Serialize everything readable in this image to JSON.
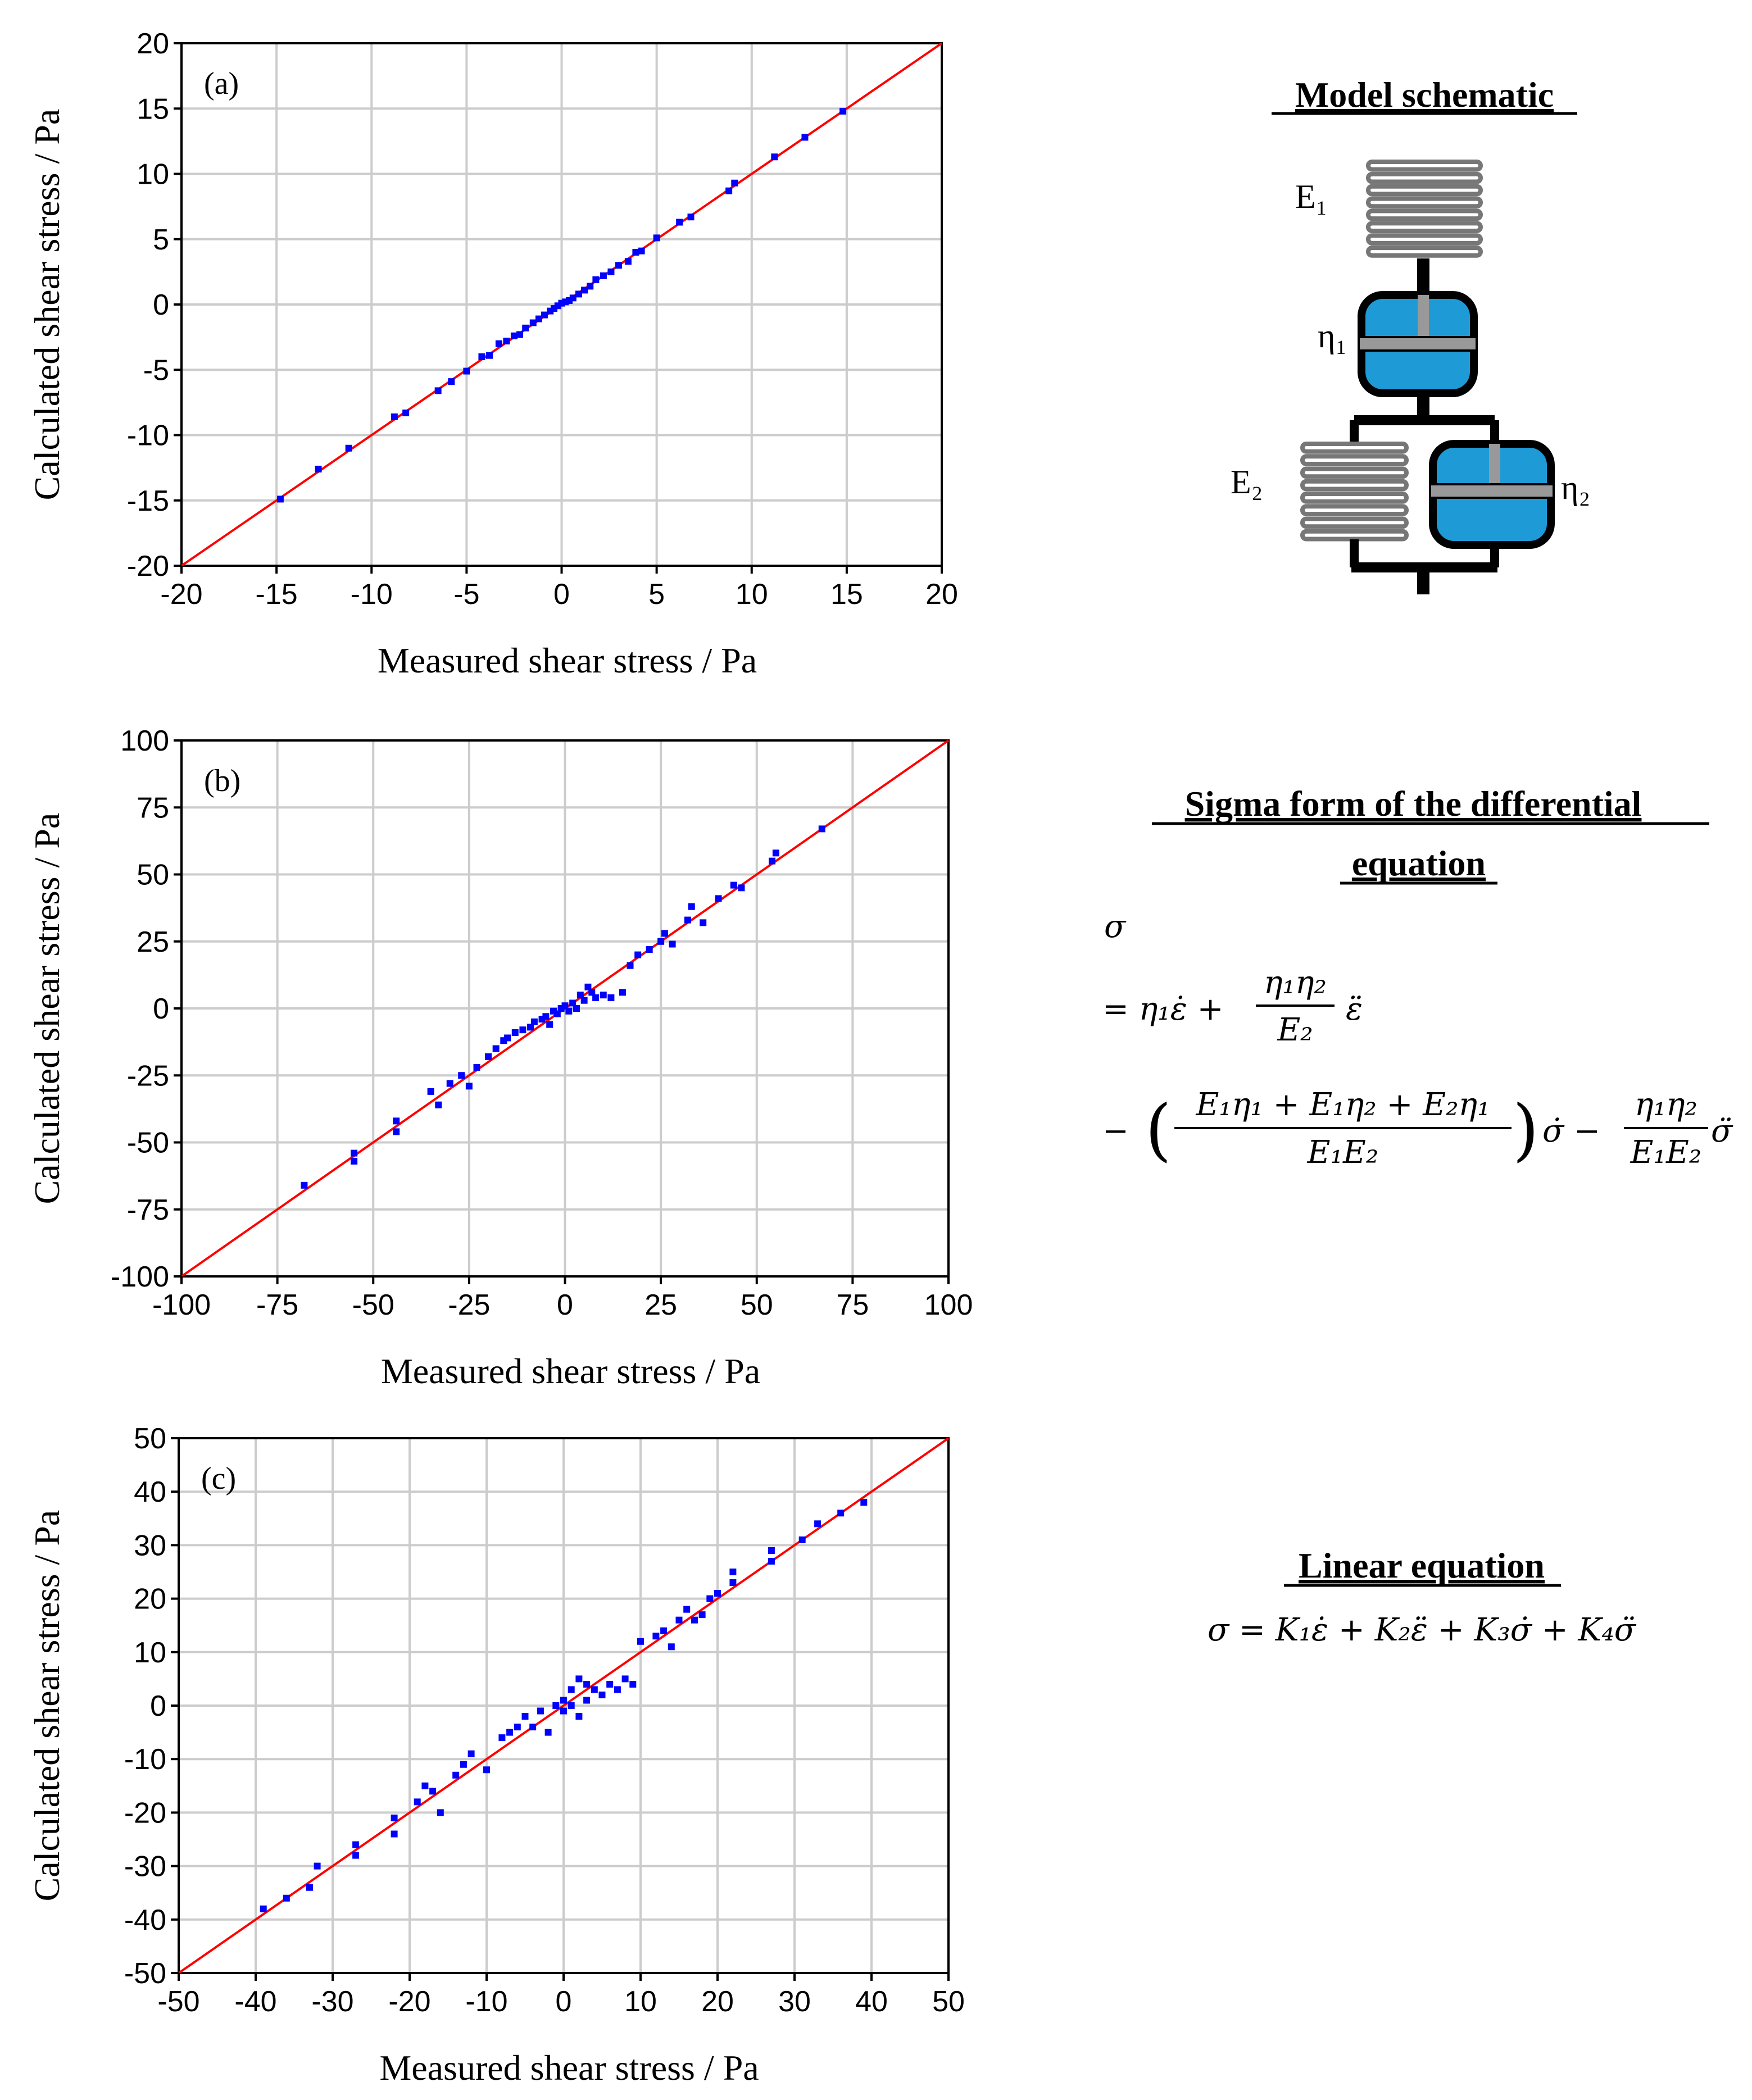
{
  "chart_data": [
    {
      "type": "scatter",
      "panel_label": "(a)",
      "xlabel": "Measured shear stress / Pa",
      "ylabel": "Calculated shear stress / Pa",
      "xlim": [
        -20,
        20
      ],
      "ylim": [
        -20,
        20
      ],
      "xticks": [
        -20,
        -15,
        -10,
        -5,
        0,
        5,
        10,
        15,
        20
      ],
      "yticks": [
        -20,
        -15,
        -10,
        -5,
        0,
        5,
        10,
        15,
        20
      ],
      "grid": true,
      "fit_line": [
        [
          -20,
          -20
        ],
        [
          20,
          20
        ]
      ],
      "points": [
        [
          -14.8,
          -14.9
        ],
        [
          -12.8,
          -12.6
        ],
        [
          -11.2,
          -11.0
        ],
        [
          -8.8,
          -8.6
        ],
        [
          -8.2,
          -8.3
        ],
        [
          -6.5,
          -6.6
        ],
        [
          -5.8,
          -5.9
        ],
        [
          -5.0,
          -5.1
        ],
        [
          -4.2,
          -4.0
        ],
        [
          -3.8,
          -3.9
        ],
        [
          -3.3,
          -3.0
        ],
        [
          -2.9,
          -2.8
        ],
        [
          -2.5,
          -2.4
        ],
        [
          -2.2,
          -2.3
        ],
        [
          -1.9,
          -1.8
        ],
        [
          -1.5,
          -1.4
        ],
        [
          -1.2,
          -1.1
        ],
        [
          -0.9,
          -0.8
        ],
        [
          -0.6,
          -0.5
        ],
        [
          -0.4,
          -0.3
        ],
        [
          -0.2,
          -0.1
        ],
        [
          0.0,
          0.1
        ],
        [
          0.2,
          0.2
        ],
        [
          0.4,
          0.3
        ],
        [
          0.6,
          0.5
        ],
        [
          0.9,
          0.8
        ],
        [
          1.2,
          1.1
        ],
        [
          1.5,
          1.4
        ],
        [
          1.8,
          1.9
        ],
        [
          2.2,
          2.2
        ],
        [
          2.6,
          2.5
        ],
        [
          3.0,
          3.0
        ],
        [
          3.5,
          3.3
        ],
        [
          3.9,
          4.0
        ],
        [
          4.2,
          4.1
        ],
        [
          5.0,
          5.1
        ],
        [
          6.2,
          6.3
        ],
        [
          6.8,
          6.7
        ],
        [
          8.8,
          8.7
        ],
        [
          9.1,
          9.3
        ],
        [
          11.2,
          11.3
        ],
        [
          12.8,
          12.8
        ],
        [
          14.8,
          14.8
        ]
      ]
    },
    {
      "type": "scatter",
      "panel_label": "(b)",
      "xlabel": "Measured shear stress / Pa",
      "ylabel": "Calculated shear stress / Pa",
      "xlim": [
        -100,
        100
      ],
      "ylim": [
        -100,
        100
      ],
      "xticks": [
        -100,
        -75,
        -50,
        -25,
        0,
        25,
        50,
        75,
        100
      ],
      "yticks": [
        -100,
        -75,
        -50,
        -25,
        0,
        25,
        50,
        75,
        100
      ],
      "grid": true,
      "fit_line": [
        [
          -100,
          -100
        ],
        [
          100,
          100
        ]
      ],
      "points": [
        [
          -68,
          -66
        ],
        [
          -55,
          -54
        ],
        [
          -55,
          -57
        ],
        [
          -44,
          -42
        ],
        [
          -44,
          -46
        ],
        [
          -35,
          -31
        ],
        [
          -33,
          -36
        ],
        [
          -30,
          -28
        ],
        [
          -27,
          -25
        ],
        [
          -25,
          -29
        ],
        [
          -23,
          -22
        ],
        [
          -20,
          -18
        ],
        [
          -18,
          -15
        ],
        [
          -16,
          -12
        ],
        [
          -15,
          -11
        ],
        [
          -13,
          -9
        ],
        [
          -11,
          -8
        ],
        [
          -9,
          -7
        ],
        [
          -8,
          -5
        ],
        [
          -6,
          -4
        ],
        [
          -5,
          -3
        ],
        [
          -4,
          -6
        ],
        [
          -3,
          -1
        ],
        [
          -2,
          -2
        ],
        [
          -1,
          0
        ],
        [
          0,
          1
        ],
        [
          1,
          -1
        ],
        [
          2,
          2
        ],
        [
          3,
          0
        ],
        [
          4,
          5
        ],
        [
          5,
          3
        ],
        [
          6,
          8
        ],
        [
          7,
          6
        ],
        [
          8,
          4
        ],
        [
          10,
          5
        ],
        [
          12,
          4
        ],
        [
          15,
          6
        ],
        [
          17,
          16
        ],
        [
          19,
          20
        ],
        [
          22,
          22
        ],
        [
          25,
          25
        ],
        [
          26,
          28
        ],
        [
          28,
          24
        ],
        [
          32,
          33
        ],
        [
          33,
          38
        ],
        [
          36,
          32
        ],
        [
          40,
          41
        ],
        [
          44,
          46
        ],
        [
          46,
          45
        ],
        [
          54,
          55
        ],
        [
          55,
          58
        ],
        [
          67,
          67
        ]
      ]
    },
    {
      "type": "scatter",
      "panel_label": "(c)",
      "xlabel": "Measured shear stress / Pa",
      "ylabel": "Calculated shear stress / Pa",
      "xlim": [
        -50,
        50
      ],
      "ylim": [
        -50,
        50
      ],
      "xticks": [
        -50,
        -40,
        -30,
        -20,
        -10,
        0,
        10,
        20,
        30,
        40,
        50
      ],
      "yticks": [
        -50,
        -40,
        -30,
        -20,
        -10,
        0,
        10,
        20,
        30,
        40,
        50
      ],
      "grid": true,
      "fit_line": [
        [
          -50,
          -50
        ],
        [
          50,
          50
        ]
      ],
      "points": [
        [
          -39,
          -38
        ],
        [
          -36,
          -36
        ],
        [
          -33,
          -34
        ],
        [
          -32,
          -30
        ],
        [
          -27,
          -26
        ],
        [
          -27,
          -28
        ],
        [
          -22,
          -21
        ],
        [
          -22,
          -24
        ],
        [
          -19,
          -18
        ],
        [
          -18,
          -15
        ],
        [
          -17,
          -16
        ],
        [
          -16,
          -20
        ],
        [
          -14,
          -13
        ],
        [
          -13,
          -11
        ],
        [
          -12,
          -9
        ],
        [
          -10,
          -12
        ],
        [
          -8,
          -6
        ],
        [
          -7,
          -5
        ],
        [
          -6,
          -4
        ],
        [
          -5,
          -2
        ],
        [
          -4,
          -4
        ],
        [
          -3,
          -1
        ],
        [
          -2,
          -5
        ],
        [
          -1,
          0
        ],
        [
          0,
          1
        ],
        [
          0,
          -1
        ],
        [
          1,
          0
        ],
        [
          1,
          3
        ],
        [
          2,
          5
        ],
        [
          2,
          -2
        ],
        [
          3,
          4
        ],
        [
          3,
          1
        ],
        [
          4,
          3
        ],
        [
          5,
          2
        ],
        [
          6,
          4
        ],
        [
          7,
          3
        ],
        [
          8,
          5
        ],
        [
          9,
          4
        ],
        [
          10,
          12
        ],
        [
          12,
          13
        ],
        [
          13,
          14
        ],
        [
          14,
          11
        ],
        [
          15,
          16
        ],
        [
          16,
          18
        ],
        [
          17,
          16
        ],
        [
          18,
          17
        ],
        [
          19,
          20
        ],
        [
          20,
          21
        ],
        [
          22,
          25
        ],
        [
          22,
          23
        ],
        [
          27,
          27
        ],
        [
          27,
          29
        ],
        [
          31,
          31
        ],
        [
          33,
          34
        ],
        [
          36,
          36
        ],
        [
          39,
          38
        ]
      ]
    }
  ],
  "model_schematic": {
    "heading": "Model schematic",
    "e1_label": "E₁",
    "eta1_label": "η₁",
    "e2_label": "E₂",
    "eta2_label": "η₂",
    "spring_color": "#999999",
    "dashpot_color": "#1e9ad6"
  },
  "sigma_form": {
    "heading_line1": "Sigma form of the differential",
    "heading_line2": "equation",
    "line1": "σ",
    "line2_lead": "= η₁ε̇ +",
    "line2_num": "η₁η₂",
    "line2_den": "E₂",
    "line2_tail": "ε̈",
    "line3_lead": "−",
    "line3_num": "E₁η₁ + E₁η₂ + E₂η₁",
    "line3_den": "E₁E₂",
    "line3_mid": "σ̇ −",
    "line3_num2": "η₁η₂",
    "line3_den2": "E₁E₂",
    "line3_tail": "σ̈"
  },
  "linear_equation": {
    "heading": "Linear equation",
    "equation": "σ = K₁ε̇ + K₂ε̈ + K₃σ̇ + K₄σ̈"
  },
  "colors": {
    "points": "#0000ff",
    "fit_line": "#ff0000",
    "grid": "#cccccc",
    "axis": "#000000"
  }
}
